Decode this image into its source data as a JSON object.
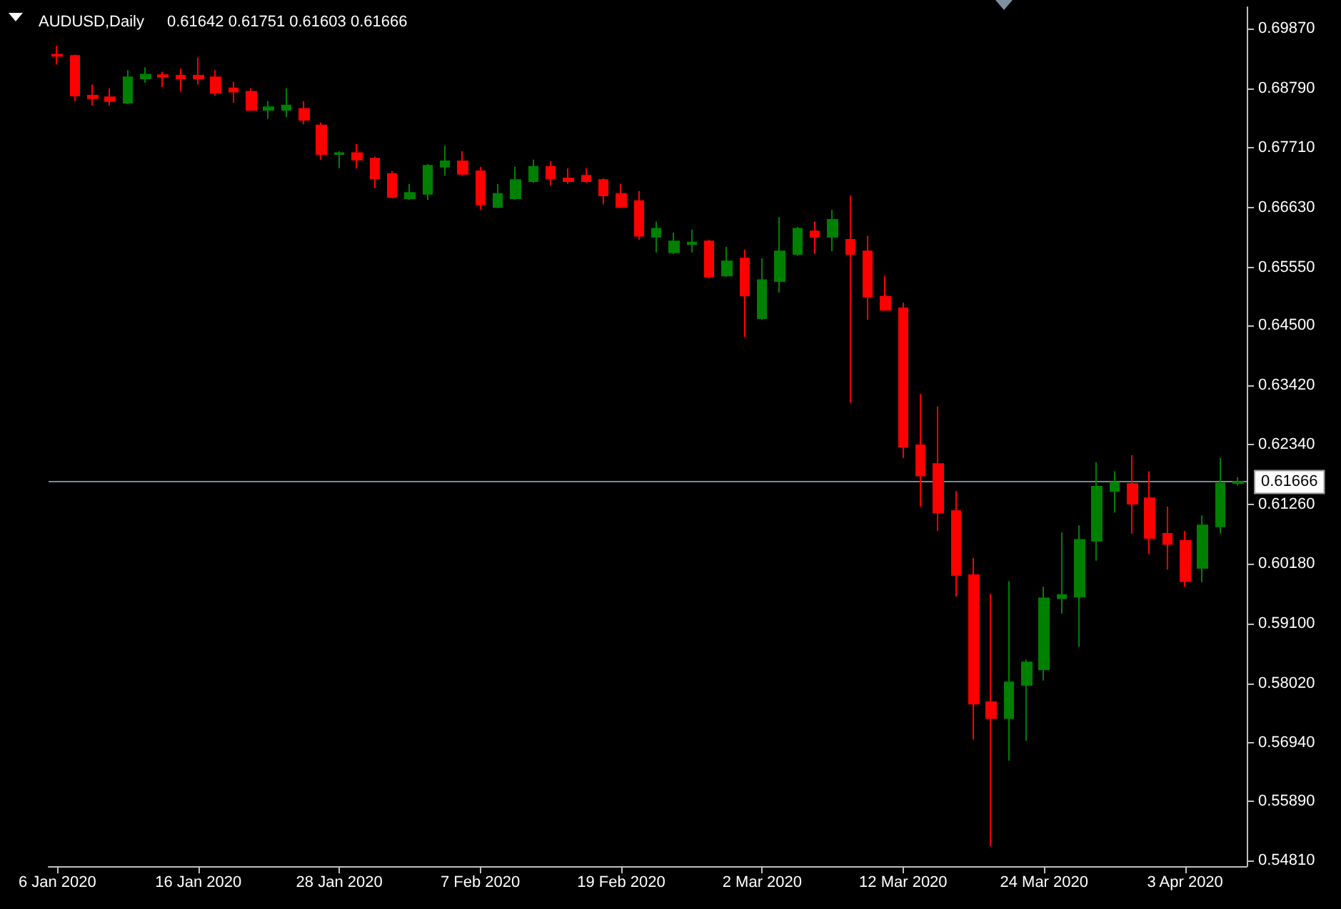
{
  "chart_data": {
    "type": "candlestick",
    "title": "AUDUSD,Daily",
    "subtitle": "0.61642 0.61751 0.61603 0.61666",
    "categories": [
      "6 Jan 2020",
      null,
      null,
      null,
      null,
      null,
      null,
      null,
      "16 Jan 2020",
      null,
      null,
      null,
      null,
      null,
      null,
      null,
      "28 Jan 2020",
      null,
      null,
      null,
      null,
      null,
      null,
      null,
      "7 Feb 2020",
      null,
      null,
      null,
      null,
      null,
      null,
      null,
      "19 Feb 2020",
      null,
      null,
      null,
      null,
      null,
      null,
      null,
      "2 Mar 2020",
      null,
      null,
      null,
      null,
      null,
      null,
      null,
      "12 Mar 2020",
      null,
      null,
      null,
      null,
      null,
      null,
      null,
      "24 Mar 2020",
      null,
      null,
      null,
      null,
      null,
      null,
      null,
      "3 Apr 2020",
      null,
      null,
      null
    ],
    "ohlc": [
      [
        0.694,
        0.6956,
        0.6922,
        0.6938
      ],
      [
        0.6938,
        0.694,
        0.6856,
        0.6866
      ],
      [
        0.6866,
        0.6886,
        0.6848,
        0.6861
      ],
      [
        0.6863,
        0.6879,
        0.6848,
        0.6856
      ],
      [
        0.6853,
        0.6912,
        0.685,
        0.6899
      ],
      [
        0.6897,
        0.6917,
        0.6889,
        0.6904
      ],
      [
        0.6903,
        0.6909,
        0.6881,
        0.69
      ],
      [
        0.6902,
        0.6915,
        0.6873,
        0.6897
      ],
      [
        0.6902,
        0.6935,
        0.6886,
        0.6897
      ],
      [
        0.6899,
        0.6912,
        0.6866,
        0.6871
      ],
      [
        0.6879,
        0.6891,
        0.6853,
        0.6873
      ],
      [
        0.6873,
        0.6879,
        0.6838,
        0.684
      ],
      [
        0.684,
        0.6856,
        0.6824,
        0.6845
      ],
      [
        0.684,
        0.6879,
        0.6827,
        0.6848
      ],
      [
        0.6842,
        0.6856,
        0.6814,
        0.6822
      ],
      [
        0.6812,
        0.6817,
        0.675,
        0.676
      ],
      [
        0.676,
        0.6765,
        0.6734,
        0.6762
      ],
      [
        0.6762,
        0.6778,
        0.6734,
        0.675
      ],
      [
        0.6752,
        0.6755,
        0.6698,
        0.6716
      ],
      [
        0.6724,
        0.6729,
        0.668,
        0.6682
      ],
      [
        0.668,
        0.6706,
        0.6677,
        0.669
      ],
      [
        0.6688,
        0.6742,
        0.6677,
        0.6739
      ],
      [
        0.6737,
        0.6775,
        0.6721,
        0.6747
      ],
      [
        0.6747,
        0.6765,
        0.6721,
        0.6724
      ],
      [
        0.6729,
        0.6737,
        0.6659,
        0.6669
      ],
      [
        0.6664,
        0.6706,
        0.6662,
        0.6688
      ],
      [
        0.668,
        0.6737,
        0.6677,
        0.6713
      ],
      [
        0.6711,
        0.675,
        0.6708,
        0.6737
      ],
      [
        0.6737,
        0.6747,
        0.6703,
        0.6716
      ],
      [
        0.6716,
        0.6734,
        0.6706,
        0.6711
      ],
      [
        0.6721,
        0.6734,
        0.6708,
        0.6711
      ],
      [
        0.6713,
        0.6716,
        0.6669,
        0.6685
      ],
      [
        0.6688,
        0.6706,
        0.6662,
        0.6664
      ],
      [
        0.6675,
        0.6693,
        0.6605,
        0.6612
      ],
      [
        0.661,
        0.6638,
        0.6582,
        0.6625
      ],
      [
        0.6582,
        0.6618,
        0.6579,
        0.6602
      ],
      [
        0.6597,
        0.6623,
        0.6582,
        0.66
      ],
      [
        0.6602,
        0.6605,
        0.6535,
        0.6538
      ],
      [
        0.654,
        0.6592,
        0.6538,
        0.6566
      ],
      [
        0.6571,
        0.6587,
        0.6429,
        0.6504
      ],
      [
        0.6463,
        0.6571,
        0.646,
        0.6532
      ],
      [
        0.653,
        0.6646,
        0.6509,
        0.6584
      ],
      [
        0.6579,
        0.6628,
        0.6576,
        0.6625
      ],
      [
        0.662,
        0.6638,
        0.6579,
        0.661
      ],
      [
        0.661,
        0.6659,
        0.6584,
        0.6641
      ],
      [
        0.6605,
        0.6685,
        0.631,
        0.6579
      ],
      [
        0.6584,
        0.6612,
        0.646,
        0.6502
      ],
      [
        0.6502,
        0.654,
        0.6476,
        0.6478
      ],
      [
        0.6481,
        0.6491,
        0.621,
        0.623
      ],
      [
        0.6233,
        0.6326,
        0.6122,
        0.6178
      ],
      [
        0.6199,
        0.6303,
        0.6078,
        0.6111
      ],
      [
        0.6114,
        0.615,
        0.5959,
        0.5998
      ],
      [
        0.5998,
        0.6029,
        0.57,
        0.5765
      ],
      [
        0.5768,
        0.5964,
        0.5507,
        0.5739
      ],
      [
        0.5739,
        0.5987,
        0.5662,
        0.5804
      ],
      [
        0.5799,
        0.5845,
        0.5698,
        0.584
      ],
      [
        0.5827,
        0.5977,
        0.5807,
        0.5956
      ],
      [
        0.5956,
        0.6075,
        0.5928,
        0.5962
      ],
      [
        0.5959,
        0.6088,
        0.5868,
        0.6062
      ],
      [
        0.606,
        0.6202,
        0.6024,
        0.6158
      ],
      [
        0.615,
        0.6186,
        0.6111,
        0.6166
      ],
      [
        0.6163,
        0.6215,
        0.6073,
        0.6127
      ],
      [
        0.6137,
        0.6186,
        0.6036,
        0.6065
      ],
      [
        0.6073,
        0.6122,
        0.6008,
        0.6054
      ],
      [
        0.606,
        0.6078,
        0.5977,
        0.5987
      ],
      [
        0.6011,
        0.6106,
        0.5985,
        0.6088
      ],
      [
        0.6086,
        0.621,
        0.6073,
        0.6164
      ],
      [
        0.61642,
        0.61751,
        0.61603,
        0.61666
      ]
    ],
    "colors": [
      "#ff0000",
      "#ff0000",
      "#ff0000",
      "#ff0000",
      "#008000",
      "#008000",
      "#ff0000",
      "#ff0000",
      "#ff0000",
      "#ff0000",
      "#ff0000",
      "#ff0000",
      "#008000",
      "#008000",
      "#ff0000",
      "#ff0000",
      "#008000",
      "#ff0000",
      "#ff0000",
      "#ff0000",
      "#008000",
      "#008000",
      "#008000",
      "#ff0000",
      "#ff0000",
      "#008000",
      "#008000",
      "#008000",
      "#ff0000",
      "#ff0000",
      "#ff0000",
      "#ff0000",
      "#ff0000",
      "#ff0000",
      "#008000",
      "#008000",
      "#008000",
      "#ff0000",
      "#008000",
      "#ff0000",
      "#008000",
      "#008000",
      "#008000",
      "#ff0000",
      "#008000",
      "#ff0000",
      "#ff0000",
      "#ff0000",
      "#ff0000",
      "#ff0000",
      "#ff0000",
      "#ff0000",
      "#ff0000",
      "#ff0000",
      "#008000",
      "#008000",
      "#008000",
      "#008000",
      "#008000",
      "#008000",
      "#008000",
      "#ff0000",
      "#ff0000",
      "#ff0000",
      "#ff0000",
      "#008000",
      "#008000",
      "#008000"
    ],
    "ylim": [
      0.5471,
      0.7026
    ],
    "yticks": [
      {
        "value": 0.5481,
        "label": "0.54810"
      },
      {
        "value": 0.5589,
        "label": "0.55890"
      },
      {
        "value": 0.5694,
        "label": "0.56940"
      },
      {
        "value": 0.5802,
        "label": "0.58020"
      },
      {
        "value": 0.591,
        "label": "0.59100"
      },
      {
        "value": 0.6018,
        "label": "0.60180"
      },
      {
        "value": 0.6126,
        "label": "0.61260"
      },
      {
        "value": 0.6234,
        "label": "0.62340"
      },
      {
        "value": 0.6342,
        "label": "0.63420"
      },
      {
        "value": 0.645,
        "label": "0.64500"
      },
      {
        "value": 0.6555,
        "label": "0.65550"
      },
      {
        "value": 0.6663,
        "label": "0.66630"
      },
      {
        "value": 0.6771,
        "label": "0.67710"
      },
      {
        "value": 0.6879,
        "label": "0.68790"
      },
      {
        "value": 0.6987,
        "label": "0.69870"
      }
    ],
    "ref_lines": [
      {
        "axis": "y",
        "value": 0.61666,
        "label": "0.61666",
        "color": "#778899"
      }
    ]
  }
}
